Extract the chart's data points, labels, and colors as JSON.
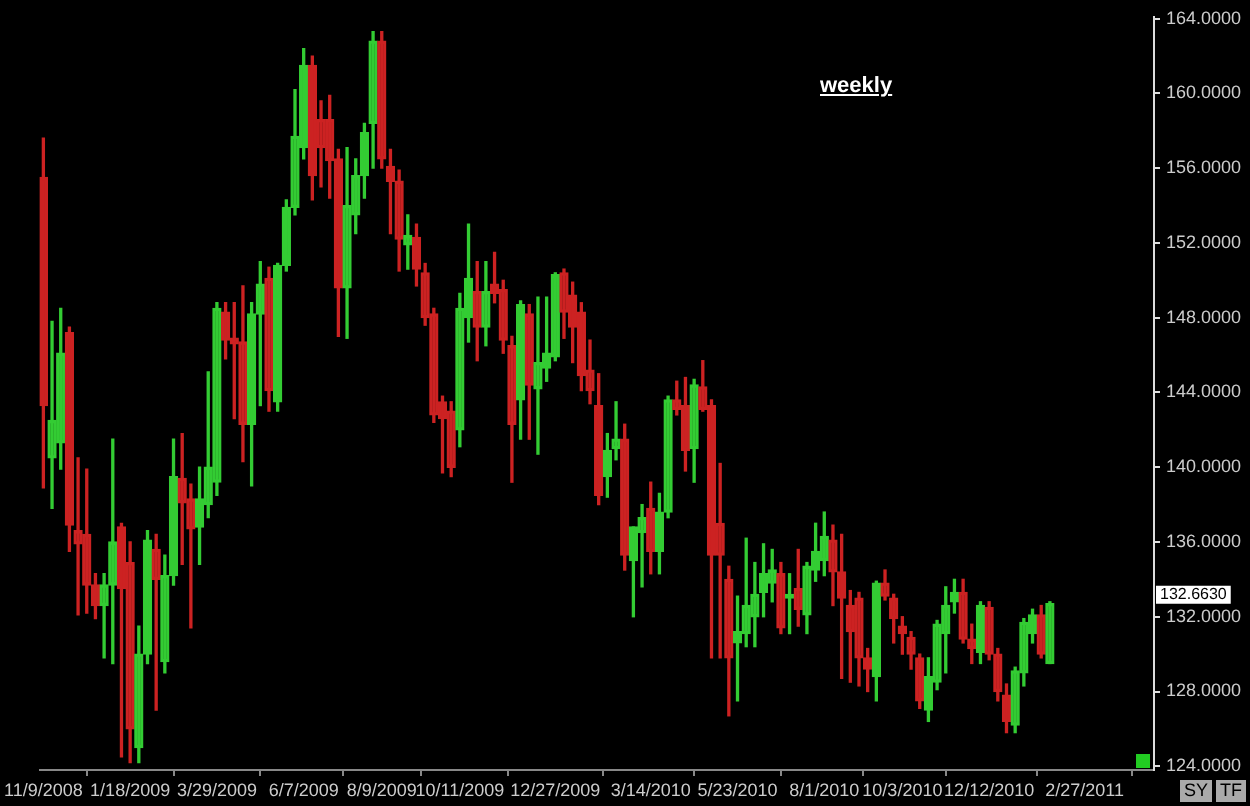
{
  "chart_data": {
    "type": "candlestick",
    "title": "weekly",
    "colors": [
      "#cc2222",
      "#33cc33",
      "#33cc33",
      "#cc2222",
      "#cc2222",
      "#cc2222",
      "#cc2222",
      "#33cc33",
      "#33cc33",
      "#cc2222",
      "#cc2222",
      "#33cc33",
      "#33cc33",
      "#cc2222",
      "#33cc33",
      "#33cc33",
      "#cc2222",
      "#cc2222",
      "#33cc33",
      "#33cc33",
      "#33cc33",
      "#cc2222",
      "#cc2222",
      "#cc2222",
      "#33cc33",
      "#33cc33",
      "#cc2222",
      "#33cc33",
      "#33cc33",
      "#33cc33",
      "#33cc33",
      "#cc2222",
      "#cc2222",
      "#cc2222",
      "#cc2222",
      "#33cc33",
      "#33cc33",
      "#33cc33",
      "#33cc33",
      "#cc2222",
      "#cc2222",
      "#cc2222",
      "#33cc33",
      "#cc2222",
      "#cc2222",
      "#cc2222",
      "#cc2222",
      "#cc2222",
      "#33cc33",
      "#33cc33",
      "#cc2222",
      "#33cc33",
      "#cc2222",
      "#cc2222",
      "#cc2222",
      "#33cc33",
      "#cc2222",
      "#33cc33",
      "#33cc33",
      "#33cc33",
      "#cc2222",
      "#cc2222",
      "#cc2222",
      "#cc2222",
      "#cc2222",
      "#33cc33",
      "#33cc33",
      "#cc2222",
      "#33cc33",
      "#33cc33",
      "#cc2222",
      "#33cc33",
      "#33cc33",
      "#cc2222",
      "#cc2222",
      "#33cc33",
      "#cc2222",
      "#cc2222",
      "#cc2222",
      "#cc2222",
      "#33cc33",
      "#33cc33",
      "#33cc33",
      "#33cc33",
      "#33cc33",
      "#cc2222",
      "#33cc33",
      "#cc2222",
      "#33cc33",
      "#33cc33",
      "#33cc33",
      "#cc2222",
      "#cc2222",
      "#cc2222",
      "#cc2222",
      "#cc2222",
      "#33cc33",
      "#cc2222",
      "#cc2222",
      "#cc2222",
      "#cc2222",
      "#cc2222",
      "#33cc33",
      "#33cc33",
      "#33cc33",
      "#33cc33",
      "#cc2222",
      "#cc2222",
      "#33cc33",
      "#cc2222",
      "#cc2222",
      "#cc2222",
      "#33cc33",
      "#33cc33",
      "#33cc33",
      "#cc2222",
      "#33cc33"
    ],
    "x": [
      "2008-11-09",
      "2008-11-16",
      "2008-11-23",
      "2008-11-30",
      "2008-12-07",
      "2008-12-14",
      "2008-12-21",
      "2008-12-28",
      "2009-01-04",
      "2009-01-11",
      "2009-01-18",
      "2009-01-25",
      "2009-02-01",
      "2009-02-08",
      "2009-02-15",
      "2009-02-22",
      "2009-03-01",
      "2009-03-08",
      "2009-03-15",
      "2009-03-22",
      "2009-03-29",
      "2009-04-05",
      "2009-04-12",
      "2009-04-19",
      "2009-04-26",
      "2009-05-03",
      "2009-05-10",
      "2009-05-17",
      "2009-05-24",
      "2009-05-31",
      "2009-06-07",
      "2009-06-14",
      "2009-06-21",
      "2009-06-28",
      "2009-07-05",
      "2009-07-12",
      "2009-07-19",
      "2009-07-26",
      "2009-08-02",
      "2009-08-09",
      "2009-08-16",
      "2009-08-23",
      "2009-08-30",
      "2009-09-06",
      "2009-09-13",
      "2009-09-20",
      "2009-09-27",
      "2009-10-04",
      "2009-10-11",
      "2009-10-18",
      "2009-10-25",
      "2009-11-01",
      "2009-11-08",
      "2009-11-15",
      "2009-11-22",
      "2009-11-29",
      "2009-12-06",
      "2009-12-13",
      "2009-12-20",
      "2009-12-27",
      "2010-01-03",
      "2010-01-10",
      "2010-01-17",
      "2010-01-24",
      "2010-01-31",
      "2010-02-07",
      "2010-02-14",
      "2010-02-21",
      "2010-02-28",
      "2010-03-07",
      "2010-03-14",
      "2010-03-21",
      "2010-03-28",
      "2010-04-04",
      "2010-04-11",
      "2010-04-18",
      "2010-04-25",
      "2010-05-02",
      "2010-05-09",
      "2010-05-16",
      "2010-05-23",
      "2010-05-30",
      "2010-06-06",
      "2010-06-13",
      "2010-06-20",
      "2010-06-27",
      "2010-07-04",
      "2010-07-11",
      "2010-07-18",
      "2010-07-25",
      "2010-08-01",
      "2010-08-08",
      "2010-08-15",
      "2010-08-22",
      "2010-08-29",
      "2010-09-05",
      "2010-09-12",
      "2010-09-19",
      "2010-09-26",
      "2010-10-03",
      "2010-10-10",
      "2010-10-17",
      "2010-10-24",
      "2010-10-31",
      "2010-11-07",
      "2010-11-14",
      "2010-11-21",
      "2010-11-28",
      "2010-12-05",
      "2010-12-12",
      "2010-12-19",
      "2010-12-26",
      "2011-01-02",
      "2011-01-09",
      "2011-01-16",
      "2011-01-23",
      "2011-01-30"
    ],
    "ohlc": [
      [
        155.5,
        157.6,
        138.9,
        143.3
      ],
      [
        140.5,
        147.8,
        137.8,
        142.5
      ],
      [
        141.3,
        148.5,
        139.9,
        146.1
      ],
      [
        147.2,
        147.5,
        135.5,
        136.9
      ],
      [
        136.6,
        140.5,
        132.1,
        135.9
      ],
      [
        136.4,
        139.9,
        132.2,
        133.7
      ],
      [
        133.7,
        134.3,
        131.9,
        132.6
      ],
      [
        132.6,
        134.3,
        129.8,
        133.7
      ],
      [
        133.7,
        141.5,
        129.5,
        136.0
      ],
      [
        136.8,
        137.0,
        124.5,
        133.5
      ],
      [
        134.9,
        136.0,
        124.2,
        126.0
      ],
      [
        125.0,
        131.5,
        124.2,
        130.0
      ],
      [
        130.0,
        136.6,
        129.5,
        136.1
      ],
      [
        135.6,
        136.4,
        127.0,
        134.0
      ],
      [
        129.6,
        135.3,
        129.0,
        134.2
      ],
      [
        134.2,
        141.5,
        133.7,
        139.5
      ],
      [
        139.4,
        141.8,
        134.8,
        138.1
      ],
      [
        138.3,
        139.1,
        131.4,
        136.7
      ],
      [
        136.8,
        140.0,
        134.8,
        138.3
      ],
      [
        138.0,
        145.1,
        137.3,
        140.0
      ],
      [
        139.2,
        148.8,
        138.5,
        148.5
      ],
      [
        148.3,
        148.8,
        145.8,
        146.8
      ],
      [
        146.9,
        148.8,
        142.6,
        146.6
      ],
      [
        146.7,
        149.7,
        140.3,
        142.3
      ],
      [
        142.3,
        148.8,
        139.0,
        148.2
      ],
      [
        148.2,
        151.0,
        143.3,
        149.8
      ],
      [
        150.1,
        150.7,
        143.0,
        144.1
      ],
      [
        143.5,
        150.9,
        143.0,
        150.8
      ],
      [
        150.8,
        154.3,
        150.5,
        153.9
      ],
      [
        153.9,
        160.2,
        153.5,
        157.7
      ],
      [
        157.1,
        162.4,
        156.5,
        161.5
      ],
      [
        161.5,
        162.0,
        154.3,
        155.6
      ],
      [
        158.6,
        159.6,
        155.0,
        157.1
      ],
      [
        158.6,
        159.9,
        154.4,
        156.4
      ],
      [
        156.5,
        157.0,
        147.0,
        149.6
      ],
      [
        149.6,
        157.1,
        146.9,
        154.0
      ],
      [
        153.5,
        156.5,
        152.5,
        155.6
      ],
      [
        155.6,
        158.4,
        154.4,
        157.9
      ],
      [
        158.4,
        163.3,
        156.0,
        162.8
      ],
      [
        162.8,
        163.3,
        156.0,
        156.5
      ],
      [
        156.1,
        157.0,
        152.5,
        155.3
      ],
      [
        155.3,
        155.9,
        150.5,
        152.2
      ],
      [
        151.9,
        153.5,
        150.6,
        152.4
      ],
      [
        152.3,
        153.0,
        149.7,
        150.6
      ],
      [
        150.4,
        150.9,
        147.6,
        148.0
      ],
      [
        148.2,
        148.5,
        142.4,
        142.8
      ],
      [
        143.5,
        143.8,
        139.7,
        142.6
      ],
      [
        143.0,
        143.5,
        139.5,
        140.0
      ],
      [
        142.0,
        149.3,
        141.1,
        148.5
      ],
      [
        148.0,
        153.0,
        146.7,
        150.1
      ],
      [
        149.4,
        151.0,
        145.7,
        147.5
      ],
      [
        147.5,
        151.0,
        146.5,
        149.4
      ],
      [
        149.8,
        151.5,
        148.8,
        149.3
      ],
      [
        149.5,
        150.0,
        146.1,
        146.8
      ],
      [
        146.5,
        147.0,
        139.2,
        142.3
      ],
      [
        143.6,
        148.9,
        141.5,
        148.7
      ],
      [
        148.2,
        148.7,
        141.5,
        144.4
      ],
      [
        144.2,
        149.1,
        140.7,
        145.6
      ],
      [
        145.3,
        149.1,
        144.6,
        146.1
      ],
      [
        145.9,
        150.4,
        145.7,
        150.3
      ],
      [
        150.4,
        150.6,
        146.9,
        148.3
      ],
      [
        149.2,
        149.9,
        145.6,
        147.5
      ],
      [
        148.3,
        148.8,
        144.1,
        144.9
      ],
      [
        145.2,
        146.8,
        143.4,
        144.1
      ],
      [
        143.3,
        145.0,
        138.0,
        138.5
      ],
      [
        139.5,
        141.8,
        138.4,
        140.9
      ],
      [
        141.0,
        143.5,
        140.4,
        141.5
      ],
      [
        141.5,
        142.3,
        134.5,
        135.3
      ],
      [
        135.0,
        136.8,
        132.0,
        136.8
      ],
      [
        136.5,
        138.0,
        133.6,
        137.3
      ],
      [
        137.8,
        139.2,
        134.3,
        135.5
      ],
      [
        135.5,
        138.6,
        134.3,
        137.6
      ],
      [
        137.6,
        143.8,
        137.3,
        143.6
      ],
      [
        143.6,
        144.6,
        142.8,
        143.1
      ],
      [
        143.3,
        144.8,
        139.8,
        140.9
      ],
      [
        141.0,
        144.7,
        139.2,
        144.4
      ],
      [
        144.3,
        145.7,
        143.0,
        143.1
      ],
      [
        143.3,
        143.6,
        129.8,
        135.3
      ],
      [
        137.0,
        140.2,
        129.8,
        135.3
      ],
      [
        134.0,
        134.7,
        126.7,
        129.8
      ],
      [
        130.6,
        133.1,
        127.5,
        131.2
      ],
      [
        131.1,
        136.2,
        130.4,
        132.6
      ],
      [
        132.0,
        134.9,
        130.4,
        133.2
      ],
      [
        133.3,
        135.9,
        132.0,
        134.3
      ],
      [
        133.8,
        135.6,
        132.8,
        134.5
      ],
      [
        134.3,
        134.9,
        131.1,
        131.4
      ],
      [
        133.0,
        134.3,
        131.1,
        133.2
      ],
      [
        133.5,
        135.6,
        131.5,
        132.4
      ],
      [
        132.1,
        134.9,
        131.1,
        134.7
      ],
      [
        134.5,
        137.0,
        133.9,
        135.5
      ],
      [
        135.0,
        137.6,
        134.2,
        136.3
      ],
      [
        136.1,
        136.9,
        132.6,
        134.4
      ],
      [
        134.4,
        136.4,
        128.7,
        133.0
      ],
      [
        132.6,
        133.4,
        128.5,
        131.2
      ],
      [
        133.0,
        133.3,
        128.3,
        129.8
      ],
      [
        129.8,
        130.3,
        128.0,
        129.2
      ],
      [
        128.8,
        133.9,
        127.5,
        133.8
      ],
      [
        133.8,
        134.5,
        132.9,
        133.1
      ],
      [
        133.0,
        133.2,
        130.6,
        131.9
      ],
      [
        131.5,
        132.0,
        130.0,
        131.1
      ],
      [
        130.9,
        131.2,
        129.2,
        130.0
      ],
      [
        129.8,
        130.0,
        127.1,
        127.5
      ],
      [
        127.0,
        129.8,
        126.4,
        128.8
      ],
      [
        128.5,
        131.8,
        128.1,
        131.6
      ],
      [
        131.1,
        133.6,
        129.0,
        132.6
      ],
      [
        132.8,
        134.0,
        132.2,
        133.3
      ],
      [
        133.3,
        134.0,
        130.6,
        130.8
      ],
      [
        130.8,
        131.6,
        129.5,
        130.3
      ],
      [
        130.1,
        132.8,
        129.5,
        132.6
      ],
      [
        132.5,
        132.8,
        129.7,
        130.0
      ],
      [
        130.0,
        130.3,
        127.5,
        128.0
      ],
      [
        127.8,
        128.4,
        125.8,
        126.4
      ],
      [
        126.2,
        129.3,
        125.8,
        129.1
      ],
      [
        129.0,
        131.9,
        128.3,
        131.7
      ],
      [
        131.1,
        132.4,
        130.6,
        132.1
      ],
      [
        132.1,
        132.6,
        129.8,
        130.0
      ],
      [
        129.5,
        132.8,
        129.5,
        132.7
      ]
    ],
    "xlim": [
      "2008-11-06",
      "2011-04-24"
    ],
    "xticks": [
      {
        "value": "2008-11-09",
        "label": "11/9/2008"
      },
      {
        "value": "2009-01-18",
        "label": "1/18/2009"
      },
      {
        "value": "2009-03-29",
        "label": "3/29/2009"
      },
      {
        "value": "2009-06-07",
        "label": "6/7/2009"
      },
      {
        "value": "2009-08-09",
        "label": "8/9/2009"
      },
      {
        "value": "2009-10-11",
        "label": "10/11/2009"
      },
      {
        "value": "2009-12-27",
        "label": "12/27/2009"
      },
      {
        "value": "2010-03-14",
        "label": "3/14/2010"
      },
      {
        "value": "2010-05-23",
        "label": "5/23/2010"
      },
      {
        "value": "2010-08-01",
        "label": "8/1/2010"
      },
      {
        "value": "2010-10-03",
        "label": "10/3/2010"
      },
      {
        "value": "2010-12-12",
        "label": "12/12/2010"
      },
      {
        "value": "2011-02-27",
        "label": "2/27/2011"
      }
    ],
    "ylim": [
      123.8,
      164.1
    ],
    "yticks": [
      {
        "value": 124,
        "label": "124.0000"
      },
      {
        "value": 128,
        "label": "128.0000"
      },
      {
        "value": 132,
        "label": "132.0000"
      },
      {
        "value": 136,
        "label": "136.0000"
      },
      {
        "value": 140,
        "label": "140.0000"
      },
      {
        "value": 144,
        "label": "144.0000"
      },
      {
        "value": 148,
        "label": "148.0000"
      },
      {
        "value": 152,
        "label": "152.0000"
      },
      {
        "value": 156,
        "label": "156.0000"
      },
      {
        "value": 160,
        "label": "160.0000"
      },
      {
        "value": 164,
        "label": "164.0000"
      }
    ],
    "annotations": [
      "132.6630",
      "SY",
      "TF"
    ]
  }
}
